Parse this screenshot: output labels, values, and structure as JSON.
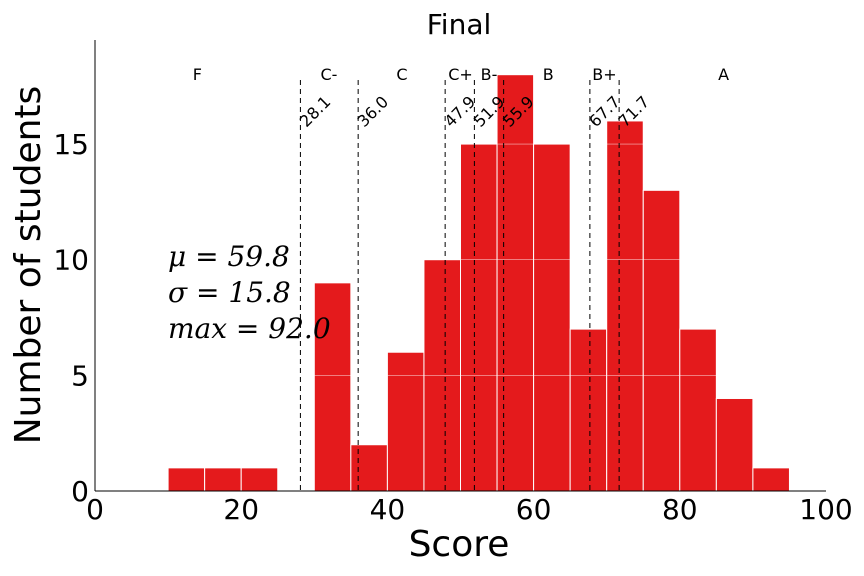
{
  "chart_data": {
    "type": "bar",
    "title": "Final",
    "xlabel": "Score",
    "ylabel": "Number of students",
    "xlim": [
      0,
      100
    ],
    "ylim": [
      0,
      19.5
    ],
    "xticks": [
      "0",
      "20",
      "40",
      "60",
      "80",
      "100"
    ],
    "yticks": [
      "0",
      "5",
      "10",
      "15"
    ],
    "bar_color": "#e41a1c",
    "bins": [
      {
        "start": 10,
        "end": 15,
        "count": 1
      },
      {
        "start": 15,
        "end": 20,
        "count": 1
      },
      {
        "start": 20,
        "end": 25,
        "count": 1
      },
      {
        "start": 30,
        "end": 35,
        "count": 9
      },
      {
        "start": 35,
        "end": 40,
        "count": 2
      },
      {
        "start": 40,
        "end": 45,
        "count": 6
      },
      {
        "start": 45,
        "end": 50,
        "count": 10
      },
      {
        "start": 50,
        "end": 55,
        "count": 15
      },
      {
        "start": 55,
        "end": 60,
        "count": 18
      },
      {
        "start": 60,
        "end": 65,
        "count": 15
      },
      {
        "start": 65,
        "end": 70,
        "count": 7
      },
      {
        "start": 70,
        "end": 75,
        "count": 16
      },
      {
        "start": 75,
        "end": 80,
        "count": 13
      },
      {
        "start": 80,
        "end": 85,
        "count": 7
      },
      {
        "start": 85,
        "end": 90,
        "count": 4
      },
      {
        "start": 90,
        "end": 95,
        "count": 1
      }
    ],
    "cutoffs": [
      {
        "value": 28.1,
        "label": "28.1"
      },
      {
        "value": 36.0,
        "label": "36.0"
      },
      {
        "value": 47.9,
        "label": "47.9"
      },
      {
        "value": 51.9,
        "label": "51.9"
      },
      {
        "value": 55.9,
        "label": "55.9"
      },
      {
        "value": 67.7,
        "label": "67.7"
      },
      {
        "value": 71.7,
        "label": "71.7"
      }
    ],
    "grades": [
      {
        "label": "F",
        "x": 14
      },
      {
        "label": "C-",
        "x": 32
      },
      {
        "label": "C",
        "x": 42
      },
      {
        "label": "C+",
        "x": 50
      },
      {
        "label": "B-",
        "x": 53.9
      },
      {
        "label": "B",
        "x": 62
      },
      {
        "label": "B+",
        "x": 69.7
      },
      {
        "label": "A",
        "x": 86
      }
    ],
    "stats": [
      "μ = 59.8",
      "σ = 15.8",
      "max = 92.0"
    ]
  }
}
